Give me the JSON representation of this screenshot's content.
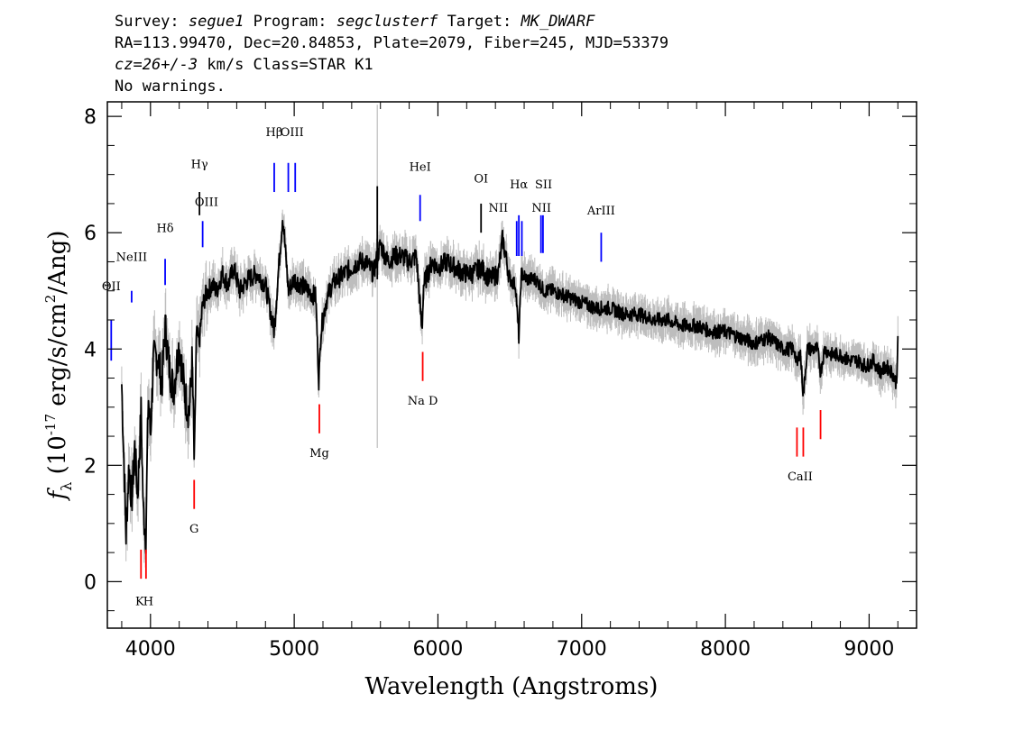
{
  "header": {
    "survey_label": "Survey:",
    "survey": "segue1",
    "program_label": "Program:",
    "program": "segclusterf",
    "target_label": "Target:",
    "target": "MK_DWARF",
    "coords": "RA=113.99470, Dec=20.84853, Plate=2079, Fiber=245, MJD=53379",
    "cz_prefix": "cz=",
    "cz_value": "26+/-3",
    "cz_suffix": " km/s Class=STAR K1",
    "warnings": "No warnings."
  },
  "colors": {
    "spectrum": "#000000",
    "noise": "#bdbdbd",
    "emission": "#0000ff",
    "absorption": "#ff0000",
    "marker": "#000000"
  },
  "chart_data": {
    "type": "line",
    "xlabel": "Wavelength (Angstroms)",
    "ylabel": "f_λ (10^-17 erg/s/cm^2/Ang)",
    "ylabel_parts": {
      "symbol": "f",
      "sub": "λ",
      "pre": " (10",
      "exp": "-17",
      "mid": " erg/s/cm",
      "exp2": "2",
      "post": "/Ang)"
    },
    "xlim": [
      3700,
      9330
    ],
    "ylim": [
      -0.8,
      8.25
    ],
    "x_ticks": [
      4000,
      5000,
      6000,
      7000,
      8000,
      9000
    ],
    "y_ticks": [
      0,
      2,
      4,
      6,
      8
    ],
    "grid": false,
    "series": [
      {
        "role": "flux",
        "x": [
          3800,
          3830,
          3850,
          3870,
          3890,
          3910,
          3935,
          3950,
          3968,
          3985,
          4000,
          4020,
          4050,
          4080,
          4102,
          4130,
          4160,
          4200,
          4240,
          4270,
          4290,
          4305,
          4320,
          4340,
          4360,
          4380,
          4400,
          4430,
          4460,
          4500,
          4540,
          4580,
          4620,
          4680,
          4740,
          4800,
          4861,
          4880,
          4920,
          4960,
          5000,
          5050,
          5100,
          5150,
          5172,
          5185,
          5220,
          5260,
          5300,
          5350,
          5400,
          5450,
          5500,
          5550,
          5580,
          5600,
          5650,
          5700,
          5750,
          5800,
          5850,
          5889,
          5900,
          5930,
          5960,
          6000,
          6060,
          6120,
          6180,
          6240,
          6300,
          6360,
          6420,
          6450,
          6500,
          6540,
          6563,
          6580,
          6620,
          6680,
          6740,
          6800,
          6900,
          7000,
          7100,
          7200,
          7300,
          7400,
          7500,
          7600,
          7700,
          7800,
          7900,
          8000,
          8100,
          8200,
          8300,
          8400,
          8480,
          8498,
          8520,
          8542,
          8570,
          8600,
          8640,
          8662,
          8690,
          8740,
          8800,
          8860,
          8920,
          8980,
          9030,
          9080,
          9120,
          9160,
          9190,
          9200
        ],
        "y": [
          3.4,
          0.8,
          2.0,
          1.4,
          2.3,
          1.5,
          2.9,
          1.2,
          0.8,
          3.2,
          2.5,
          3.8,
          3.9,
          3.4,
          4.4,
          3.7,
          3.3,
          4.1,
          3.2,
          2.9,
          3.8,
          2.0,
          4.3,
          4.1,
          4.7,
          4.9,
          5.0,
          5.1,
          5.0,
          5.3,
          5.1,
          5.4,
          5.0,
          5.2,
          5.3,
          5.1,
          4.3,
          5.0,
          6.3,
          5.0,
          5.2,
          5.1,
          5.0,
          4.9,
          3.4,
          4.3,
          4.8,
          5.1,
          5.2,
          5.3,
          5.4,
          5.5,
          5.5,
          5.3,
          5.6,
          5.8,
          5.5,
          5.6,
          5.6,
          5.5,
          5.6,
          4.3,
          5.1,
          5.3,
          5.5,
          5.4,
          5.5,
          5.4,
          5.3,
          5.3,
          5.4,
          5.2,
          5.3,
          5.9,
          5.2,
          5.1,
          4.2,
          5.3,
          5.2,
          5.2,
          5.0,
          5.0,
          4.9,
          4.8,
          4.7,
          4.7,
          4.6,
          4.6,
          4.5,
          4.5,
          4.4,
          4.4,
          4.3,
          4.3,
          4.2,
          4.1,
          4.2,
          4.0,
          4.0,
          3.7,
          4.0,
          3.2,
          4.0,
          4.0,
          4.0,
          3.6,
          4.0,
          3.9,
          3.9,
          3.8,
          3.8,
          3.7,
          3.8,
          3.6,
          3.7,
          3.6,
          3.4,
          4.1
        ]
      }
    ],
    "emission_lines": [
      {
        "label": "OII",
        "shown": "ΘII",
        "x": 3727
      },
      {
        "label": "NeIII",
        "x": 3869
      },
      {
        "label": "Hδ",
        "x": 4102
      },
      {
        "label": "Hγ",
        "x": 4341
      },
      {
        "label": "OIII",
        "x": 4363
      },
      {
        "label": "Hβ",
        "x": 4861
      },
      {
        "label": "OIII",
        "x": 4959
      },
      {
        "label": "OIII",
        "x": 5007
      },
      {
        "label": "HeI",
        "x": 5876
      },
      {
        "label": "OI",
        "x": 6300
      },
      {
        "label": "NII",
        "x": 6548
      },
      {
        "label": "Hα",
        "x": 6563
      },
      {
        "label": "NII",
        "x": 6584
      },
      {
        "label": "SII",
        "x": 6717
      },
      {
        "label": "SII",
        "x": 6731
      },
      {
        "label": "ArIII",
        "x": 7136
      }
    ],
    "absorption_lines": [
      {
        "label": "K",
        "x": 3934
      },
      {
        "label": "H",
        "x": 3969
      },
      {
        "label": "G",
        "x": 4304
      },
      {
        "label": "Mg",
        "x": 5175
      },
      {
        "label": "Na D",
        "x": 5894
      },
      {
        "label": "CaII",
        "x": 8498
      },
      {
        "label": "CaII",
        "x": 8542
      },
      {
        "label": "CaII",
        "x": 8662
      }
    ]
  }
}
